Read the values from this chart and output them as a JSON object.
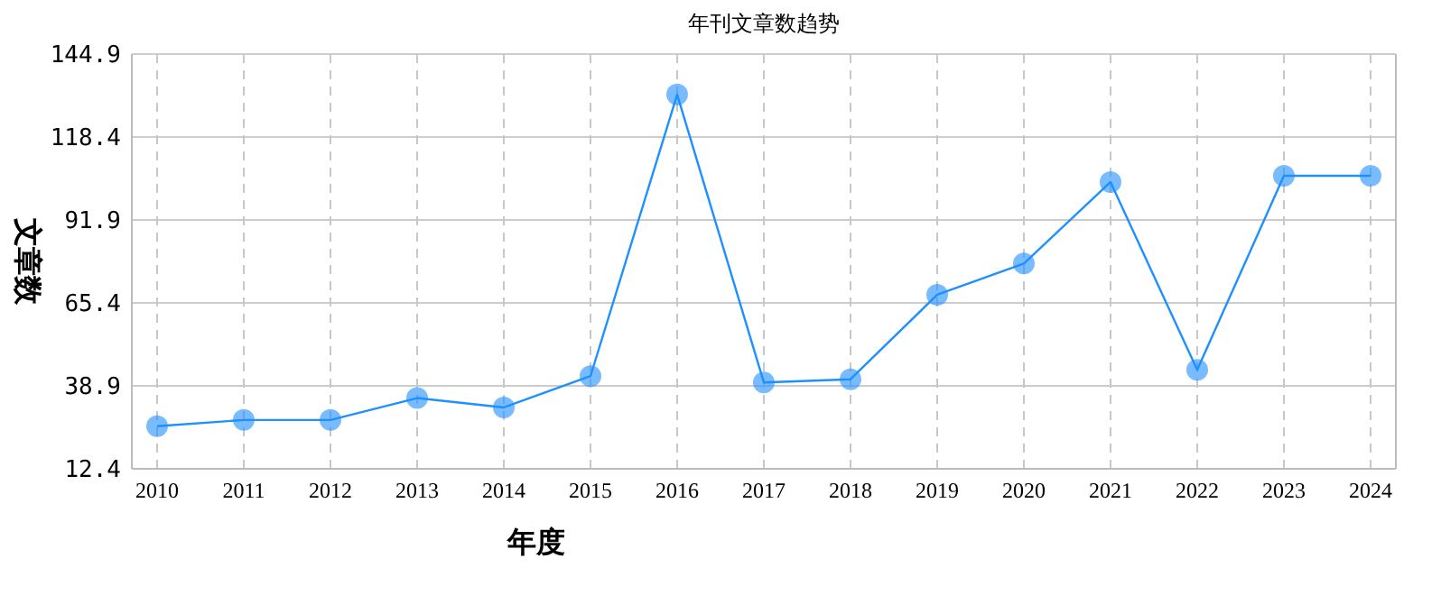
{
  "chart_data": {
    "type": "line",
    "title": "年刊文章数趋势",
    "xlabel": "年度",
    "ylabel": "文章数",
    "categories": [
      "2010",
      "2011",
      "2012",
      "2013",
      "2014",
      "2015",
      "2016",
      "2017",
      "2018",
      "2019",
      "2020",
      "2021",
      "2022",
      "2023",
      "2024"
    ],
    "series": [
      {
        "color": "#1e90ff",
        "values": [
          26,
          28,
          28,
          35,
          32,
          42,
          132,
          40,
          41,
          68,
          78,
          104,
          44,
          106,
          106
        ]
      }
    ],
    "ylim": [
      12.4,
      144.9
    ],
    "yticks": [
      12.4,
      38.9,
      65.4,
      91.9,
      118.4,
      144.9
    ],
    "grid": true,
    "marker": "circle",
    "line_style": "solid"
  }
}
